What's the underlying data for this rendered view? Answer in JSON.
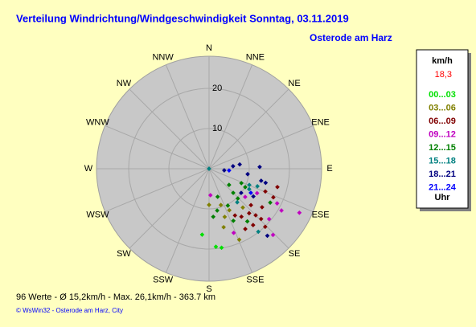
{
  "chart_data": {
    "type": "polar-scatter",
    "title": "Verteilung Windrichtung/Windgeschwindigkeit  Sonntag, 03.11.2019",
    "subtitle": "Osterode am Harz",
    "directions": [
      "N",
      "NNE",
      "NE",
      "ENE",
      "E",
      "ESE",
      "SE",
      "SSE",
      "S",
      "SSW",
      "SW",
      "WSW",
      "W",
      "WNW",
      "NW",
      "NNW"
    ],
    "rlim": [
      0,
      28
    ],
    "rticks": [
      10,
      20
    ],
    "legend_title": "km/h",
    "legend_value": "18,3",
    "legend_footer": "Uhr",
    "series": [
      {
        "name": "00...03",
        "color": "#00e000",
        "direction": [
          186,
          171,
          175
        ],
        "speed": [
          16.5,
          19.9,
          19.5
        ]
      },
      {
        "name": "03...06",
        "color": "#808000",
        "direction": [
          162,
          154,
          162,
          157,
          139,
          166,
          180
        ],
        "speed": [
          9.5,
          11.5,
          12.6,
          19.2,
          12.8,
          15.0,
          9.0
        ]
      },
      {
        "name": "06...09",
        "color": "#800000",
        "direction": [
          151,
          146,
          138,
          135,
          112,
          149,
          142,
          136,
          105,
          131,
          126,
          134,
          114
        ],
        "speed": [
          13.3,
          14.4,
          14.9,
          16.4,
          15.1,
          17.5,
          17.8,
          20.1,
          17.6,
          13.8,
          16.3,
          18.0,
          17.5
        ]
      },
      {
        "name": "09...12",
        "color": "#c000c0",
        "direction": [
          128,
          117,
          117,
          120,
          116,
          177,
          130,
          159,
          136
        ],
        "speed": [
          11.4,
          13.4,
          19.0,
          20.8,
          25.0,
          6.6,
          19.5,
          17.1,
          22.9
        ]
      },
      {
        "name": "12...15",
        "color": "#008000",
        "direction": [
          114,
          135,
          136,
          169,
          175,
          129,
          117,
          119,
          153,
          155,
          163,
          144
        ],
        "speed": [
          8.8,
          8.5,
          10.3,
          10.6,
          12.0,
          6.4,
          10.1,
          17.4,
          10.3,
          14.3,
          7.3,
          16.2
        ]
      },
      {
        "name": "15...18",
        "color": "#008080",
        "direction": [
          0,
          112,
          142,
          117,
          110,
          140
        ],
        "speed": [
          0,
          10.8,
          19.9,
          11.2,
          12.8,
          10.9
        ]
      },
      {
        "name": "18...21",
        "color": "#000080",
        "direction": [
          96,
          84,
          82,
          98,
          88,
          103,
          104,
          122,
          139,
          127
        ],
        "speed": [
          3.8,
          6.0,
          7.7,
          9.7,
          12.6,
          13.3,
          14.5,
          13.0,
          22.1,
          10.0
        ]
      },
      {
        "name": "21...24",
        "color": "#0000ff",
        "direction": [
          95,
          120
        ],
        "speed": [
          5.0,
          12.0
        ]
      }
    ],
    "footer": "96 Werte   -   Ø 15,2km/h   -   Max. 26,1km/h   -   363.7 km",
    "copyright": "© WsWin32  -  Osterode am Harz, City"
  }
}
